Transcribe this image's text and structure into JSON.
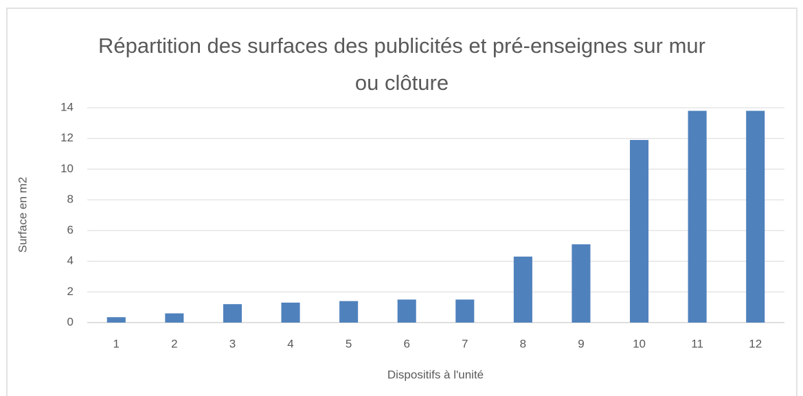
{
  "chart_data": {
    "type": "bar",
    "title": "Répartition des surfaces des publicités et pré-enseignes sur mur ou clôture",
    "x_label": "Dispositifs à l'unité",
    "y_label": "Surface en m2",
    "categories": [
      "1",
      "2",
      "3",
      "4",
      "5",
      "6",
      "7",
      "8",
      "9",
      "10",
      "11",
      "12"
    ],
    "values": [
      0.35,
      0.6,
      1.2,
      1.3,
      1.4,
      1.5,
      1.5,
      4.3,
      5.1,
      11.9,
      13.8,
      13.8
    ],
    "color": "#4f81bd",
    "ylim": [
      0,
      14
    ],
    "yticks": [
      0,
      2,
      4,
      6,
      8,
      10,
      12,
      14
    ],
    "grid": true
  }
}
